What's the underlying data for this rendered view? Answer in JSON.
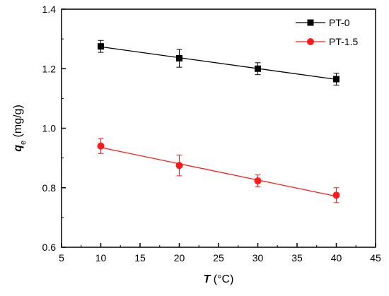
{
  "chart_data": {
    "type": "scatter",
    "xlabel_symbol": "T",
    "xlabel_unit": " (°C)",
    "ylabel_symbol": "q",
    "ylabel_subscript": "e",
    "ylabel_unit": " (mg/g)",
    "xlim": [
      5,
      45
    ],
    "ylim": [
      0.6,
      1.4
    ],
    "xticks": [
      5,
      10,
      15,
      20,
      25,
      30,
      35,
      40,
      45
    ],
    "yticks": [
      0.6,
      0.8,
      1.0,
      1.2,
      1.4
    ],
    "xtick_labels": [
      "5",
      "10",
      "15",
      "20",
      "25",
      "30",
      "35",
      "40",
      "45"
    ],
    "ytick_labels": [
      "0.6",
      "0.8",
      "1.0",
      "1.2",
      "1.4"
    ],
    "grid": false,
    "legend_position": "top-right",
    "series": [
      {
        "name": "PT-0",
        "color": "#000000",
        "marker": "square",
        "x": [
          10,
          20,
          30,
          40
        ],
        "y": [
          1.275,
          1.235,
          1.2,
          1.165
        ],
        "error": [
          0.02,
          0.03,
          0.02,
          0.02
        ],
        "fit_line": true
      },
      {
        "name": "PT-1.5",
        "color": "#ff1a1a",
        "marker": "circle",
        "x": [
          10,
          20,
          30,
          40
        ],
        "y": [
          0.94,
          0.875,
          0.823,
          0.775
        ],
        "error": [
          0.025,
          0.035,
          0.02,
          0.025
        ],
        "fit_line": true
      }
    ]
  }
}
